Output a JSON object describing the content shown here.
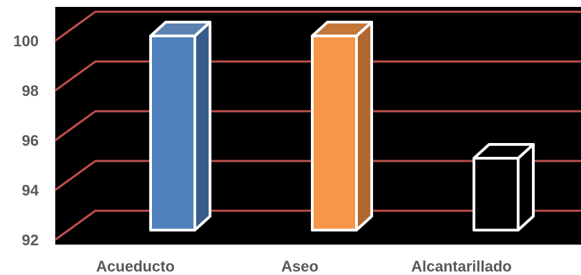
{
  "chart_data": {
    "type": "bar",
    "style": "3d-column",
    "categories": [
      "Acueducto",
      "Aseo",
      "Alcantarillado"
    ],
    "values": [
      100,
      100,
      95
    ],
    "ylim": [
      92,
      101
    ],
    "y_ticks": [
      "92",
      "94",
      "96",
      "98",
      "100"
    ],
    "grid": true,
    "legend": "none",
    "colors": {
      "background": "#000000",
      "gridline": "#c0504d",
      "bar_fronts": [
        "#4f81bd",
        "#f79646",
        "#000000"
      ],
      "bar_sides": [
        "#385d8a",
        "#b1672f",
        "#000000"
      ],
      "bar_tops": [
        "#5b82b0",
        "#c5773a",
        "#000000"
      ],
      "bar_outline": "#ffffff",
      "label_text": "#595959"
    }
  }
}
